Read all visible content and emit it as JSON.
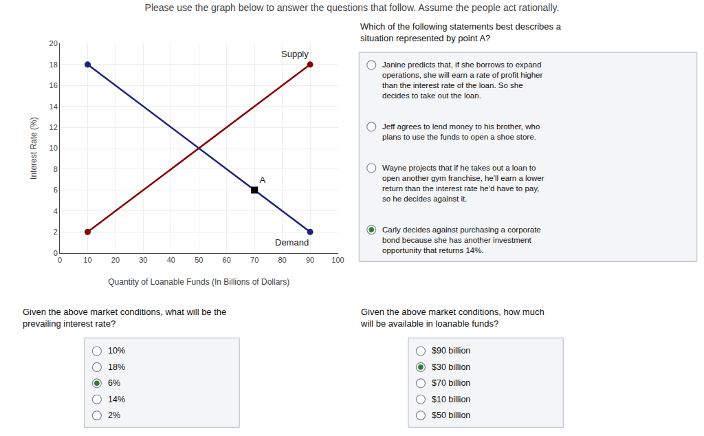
{
  "chart_data": {
    "type": "line",
    "title": "Please use the graph below to answer the questions that follow. Assume the people act rationally.",
    "x_label": "Quantity of Loanable Funds (In Billions of Dollars)",
    "y_label": "Interest Rate (%)",
    "xlim": [
      0,
      100
    ],
    "ylim": [
      0,
      20
    ],
    "xticks": [
      0,
      10,
      20,
      30,
      40,
      50,
      60,
      70,
      80,
      90,
      100
    ],
    "yticks": [
      0,
      2,
      4,
      6,
      8,
      10,
      12,
      14,
      16,
      18,
      20
    ],
    "grid": true,
    "series": [
      {
        "name": "Supply",
        "type": "line",
        "marker": "circle",
        "color": "#8B0000",
        "x": [
          10,
          90
        ],
        "values": [
          2,
          18
        ]
      },
      {
        "name": "Demand",
        "type": "line",
        "marker": "circle",
        "color": "#1a237e",
        "x": [
          10,
          90
        ],
        "values": [
          18,
          2
        ]
      },
      {
        "name": "A",
        "type": "scatter",
        "marker": "square",
        "color": "#000000",
        "x": [
          70
        ],
        "values": [
          6
        ]
      }
    ],
    "questions": [
      {
        "question": "Which of the following statements best describes a\nsituation represented by point A?",
        "options": [
          "Janine predicts that, if she borrows to expand\noperations, she will earn a rate of profit higher\nthan the interest rate of the loan. So she\ndecides to take out the loan.",
          "Jeff agrees to lend money to his brother, who\nplans to use the funds to open a shoe store.",
          "Wayne projects that if he takes out a loan to\nopen another gym franchise, he'll earn a lower\nreturn than the interest rate he'd have to pay,\nso he decides against it.",
          "Carly decides against purchasing a corporate\nbond because she has another investment\nopportunity that returns 14%."
        ],
        "selected": 3,
        "color": "#2e7d32"
      },
      {
        "question": "Given the above market conditions, what will be the\nprevailing interest rate?",
        "options": [
          "10%",
          "18%",
          "6%",
          "14%",
          "2%"
        ],
        "selected": 2,
        "color": "#2e7d32"
      },
      {
        "question": "Given the above market conditions, how much\nwill be available in loanable funds?",
        "options": [
          "$90 billion",
          "$30 billion",
          "$70 billion",
          "$10 billion",
          "$50 billion"
        ],
        "selected": 1,
        "color": "#2e7d32"
      }
    ]
  }
}
